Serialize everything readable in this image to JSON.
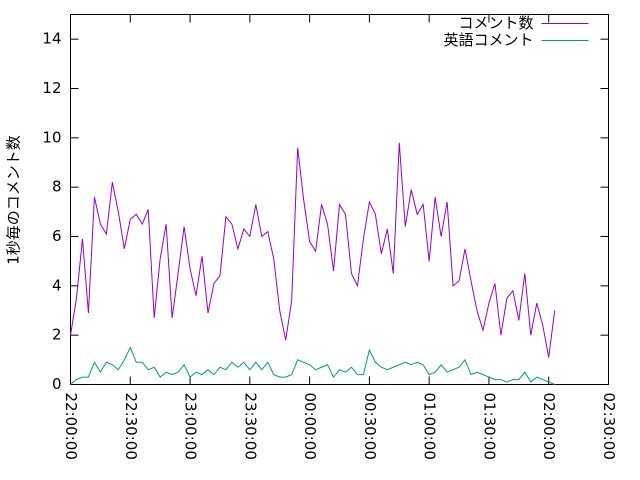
{
  "chart_data": {
    "type": "line",
    "ylabel": "1秒毎のコメント数",
    "x": [
      "22:00:00",
      "22:03:00",
      "22:06:00",
      "22:09:00",
      "22:12:00",
      "22:15:00",
      "22:18:00",
      "22:21:00",
      "22:24:00",
      "22:27:00",
      "22:30:00",
      "22:33:00",
      "22:36:00",
      "22:39:00",
      "22:42:00",
      "22:45:00",
      "22:48:00",
      "22:51:00",
      "22:54:00",
      "22:57:00",
      "23:00:00",
      "23:03:00",
      "23:06:00",
      "23:09:00",
      "23:12:00",
      "23:15:00",
      "23:18:00",
      "23:21:00",
      "23:24:00",
      "23:27:00",
      "23:30:00",
      "23:33:00",
      "23:36:00",
      "23:39:00",
      "23:42:00",
      "23:45:00",
      "23:48:00",
      "23:51:00",
      "23:54:00",
      "23:57:00",
      "00:00:00",
      "00:03:00",
      "00:06:00",
      "00:09:00",
      "00:12:00",
      "00:15:00",
      "00:18:00",
      "00:21:00",
      "00:24:00",
      "00:27:00",
      "00:30:00",
      "00:33:00",
      "00:36:00",
      "00:39:00",
      "00:42:00",
      "00:45:00",
      "00:48:00",
      "00:51:00",
      "00:54:00",
      "00:57:00",
      "01:00:00",
      "01:03:00",
      "01:06:00",
      "01:09:00",
      "01:12:00",
      "01:15:00",
      "01:18:00",
      "01:21:00",
      "01:24:00",
      "01:27:00",
      "01:30:00",
      "01:33:00",
      "01:36:00",
      "01:39:00",
      "01:42:00",
      "01:45:00",
      "01:48:00",
      "01:51:00",
      "01:54:00",
      "01:57:00",
      "02:00:00",
      "02:03:00"
    ],
    "series": [
      {
        "name": "コメント数",
        "color": "#9400d3",
        "values": [
          2.0,
          3.5,
          5.9,
          2.9,
          7.6,
          6.5,
          6.1,
          8.2,
          7.0,
          5.5,
          6.7,
          6.9,
          6.5,
          7.1,
          2.7,
          5.1,
          6.5,
          2.7,
          4.5,
          6.4,
          4.7,
          3.6,
          5.2,
          2.9,
          4.1,
          4.4,
          6.8,
          6.5,
          5.5,
          6.3,
          6.0,
          7.3,
          6.0,
          6.2,
          5.1,
          3.0,
          1.8,
          3.4,
          9.6,
          7.5,
          5.8,
          5.4,
          7.3,
          6.5,
          4.6,
          7.3,
          6.9,
          4.5,
          4.0,
          5.9,
          7.4,
          6.9,
          5.3,
          6.3,
          4.5,
          9.8,
          6.4,
          7.9,
          6.9,
          7.3,
          5.0,
          7.6,
          6.0,
          7.4,
          4.0,
          4.2,
          5.5,
          4.2,
          3.0,
          2.2,
          3.3,
          4.1,
          2.0,
          3.5,
          3.8,
          2.6,
          4.5,
          2.0,
          3.3,
          2.4,
          1.1,
          3.0
        ]
      },
      {
        "name": "英語コメント",
        "color": "#009e73",
        "values": [
          0,
          0.2,
          0.3,
          0.3,
          0.9,
          0.5,
          0.9,
          0.8,
          0.6,
          1.0,
          1.5,
          0.9,
          0.9,
          0.6,
          0.7,
          0.3,
          0.5,
          0.4,
          0.5,
          0.8,
          0.3,
          0.5,
          0.4,
          0.6,
          0.4,
          0.7,
          0.6,
          0.9,
          0.7,
          0.9,
          0.6,
          0.9,
          0.6,
          0.9,
          0.4,
          0.3,
          0.3,
          0.4,
          1.0,
          0.9,
          0.8,
          0.6,
          0.7,
          0.8,
          0.3,
          0.6,
          0.5,
          0.7,
          0.4,
          0.4,
          1.4,
          0.9,
          0.7,
          0.6,
          0.7,
          0.8,
          0.9,
          0.8,
          0.9,
          0.8,
          0.4,
          0.5,
          0.8,
          0.5,
          0.6,
          0.7,
          1.0,
          0.4,
          0.5,
          0.4,
          0.3,
          0.2,
          0.2,
          0.1,
          0.2,
          0.2,
          0.5,
          0.1,
          0.3,
          0.2,
          0.1,
          0.0
        ]
      }
    ],
    "xlim": [
      "22:00:00",
      "02:30:00"
    ],
    "xticks": [
      "22:00:00",
      "22:30:00",
      "23:00:00",
      "23:30:00",
      "00:00:00",
      "00:30:00",
      "01:00:00",
      "01:30:00",
      "02:00:00",
      "02:30:00"
    ],
    "ylim": [
      0,
      15
    ],
    "yticks": [
      0,
      2,
      4,
      6,
      8,
      10,
      12,
      14
    ],
    "legend": "top-right"
  }
}
